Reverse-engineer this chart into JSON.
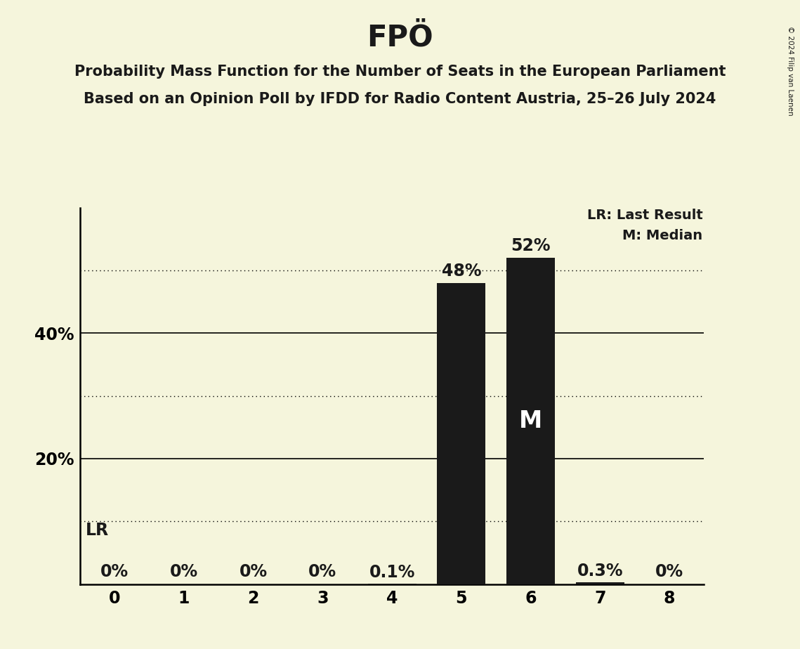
{
  "title": "FPÖ",
  "subtitle1": "Probability Mass Function for the Number of Seats in the European Parliament",
  "subtitle2": "Based on an Opinion Poll by IFDD for Radio Content Austria, 25–26 July 2024",
  "copyright": "© 2024 Filip van Laenen",
  "categories": [
    0,
    1,
    2,
    3,
    4,
    5,
    6,
    7,
    8
  ],
  "values": [
    0.0,
    0.0,
    0.0,
    0.0,
    0.001,
    0.48,
    0.52,
    0.003,
    0.0
  ],
  "bar_colors": [
    "#1a1a1a",
    "#1a1a1a",
    "#1a1a1a",
    "#1a1a1a",
    "#1a1a1a",
    "#1a1a1a",
    "#1a1a1a",
    "#1a1a1a",
    "#1a1a1a"
  ],
  "bar_labels": [
    "0%",
    "0%",
    "0%",
    "0%",
    "0.1%",
    "48%",
    "52%",
    "0.3%",
    "0%"
  ],
  "median_bar": 6,
  "median_label": "M",
  "legend_lr": "LR: Last Result",
  "legend_m": "M: Median",
  "lr_annotation_label": "LR",
  "background_color": "#f5f5dc",
  "ylim": [
    0,
    0.6
  ],
  "solid_yticks": [
    0.2,
    0.4
  ],
  "dotted_yticks": [
    0.1,
    0.3,
    0.5
  ],
  "title_fontsize": 30,
  "subtitle_fontsize": 15,
  "label_fontsize": 14,
  "tick_fontsize": 17,
  "bar_label_fontsize": 17
}
